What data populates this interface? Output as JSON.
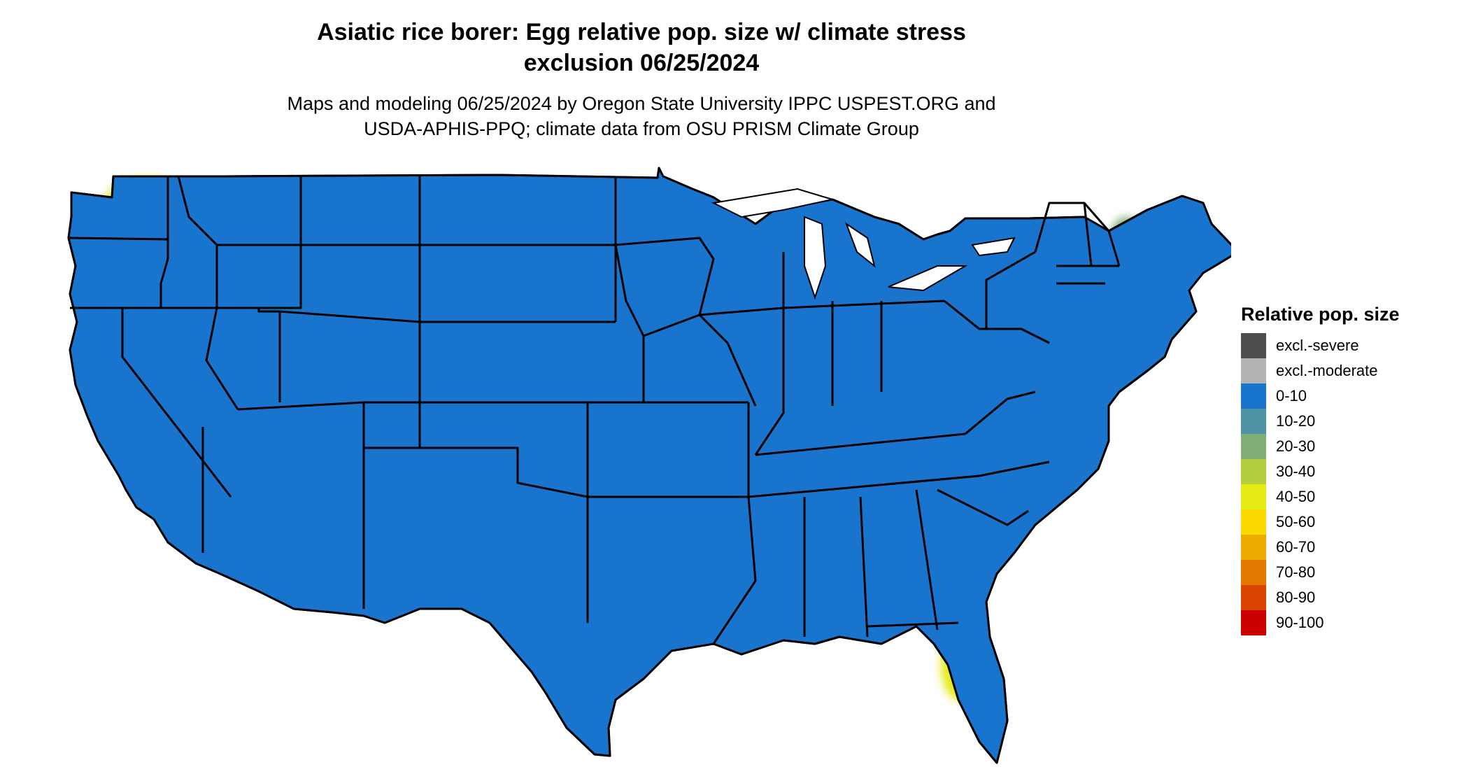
{
  "title": {
    "line1": "Asiatic rice borer: Egg relative pop. size w/ climate stress",
    "line2": "exclusion 06/25/2024"
  },
  "subtitle": {
    "line1": "Maps and modeling 06/25/2024 by Oregon State University IPPC USPEST.ORG and",
    "line2": "USDA-APHIS-PPQ; climate data from OSU PRISM Climate Group"
  },
  "legend": {
    "title": "Relative pop. size",
    "items": [
      {
        "label": "excl.-severe",
        "color": "#4d4d4d"
      },
      {
        "label": "excl.-moderate",
        "color": "#b3b3b3"
      },
      {
        "label": "0-10",
        "color": "#1874cd"
      },
      {
        "label": "10-20",
        "color": "#4f94a6"
      },
      {
        "label": "20-30",
        "color": "#7fae74"
      },
      {
        "label": "30-40",
        "color": "#b2cf3f"
      },
      {
        "label": "40-50",
        "color": "#e5ea16"
      },
      {
        "label": "50-60",
        "color": "#fcd700"
      },
      {
        "label": "60-70",
        "color": "#eeaa00"
      },
      {
        "label": "70-80",
        "color": "#e27a00"
      },
      {
        "label": "80-90",
        "color": "#d94400"
      },
      {
        "label": "90-100",
        "color": "#cd0000"
      }
    ]
  },
  "map": {
    "base_color": "#1874cd",
    "border_color": "#000000"
  }
}
